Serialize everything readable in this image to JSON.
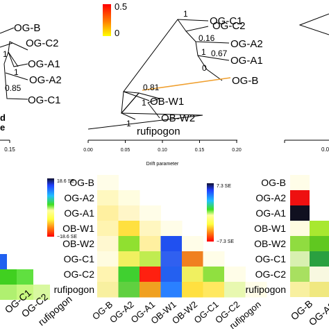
{
  "tree_left": {
    "labels": [
      "OG-B",
      "OG-C2",
      "OG-A1",
      "OG-A2",
      "OG-C1"
    ],
    "support": [
      "1",
      "1",
      "0.85"
    ],
    "tick_label": "0.15",
    "partial_glyphs": [
      "d",
      "e"
    ]
  },
  "tree_center": {
    "labels": [
      "OG-C1",
      "OG-C2",
      "OG-A2",
      "OG-A1",
      "OG-B",
      "OB-W1",
      "OB-W2",
      "rufipogon"
    ],
    "support": [
      "1",
      "0.16",
      "0.67",
      "1",
      "0",
      "0.81",
      "1",
      "1"
    ],
    "migration_edge_color": "#f0a030",
    "x_axis": {
      "label": "Drift parameter",
      "ticks": [
        "0.00",
        "0.05",
        "0.10",
        "0.15",
        "0.20"
      ]
    }
  },
  "tree_right": {
    "tick_label": "0.0"
  },
  "migration_scale": {
    "max_label": "0.5",
    "min_label": "0",
    "colors": [
      "#ff0000",
      "#ff8000",
      "#ffff00"
    ]
  },
  "heatmap_left": {
    "scale_max": "18.6 SE",
    "scale_min": "−18.6 SE",
    "x_labels": [
      "OG-C1",
      "OG-C2",
      "rufipogon"
    ]
  },
  "heatmap_center": {
    "row_labels": [
      "OG-B",
      "OG-A2",
      "OG-A1",
      "OB-W1",
      "OB-W2",
      "OG-C1",
      "OG-C2",
      "rufipogon"
    ],
    "col_labels": [
      "OG-B",
      "OG-A2",
      "OG-A1",
      "OB-W1",
      "OB-W2",
      "OG-C1",
      "OG-C2",
      "rufipogon"
    ],
    "scale_max": "7.3 SE",
    "scale_min": "−7.3 SE"
  },
  "heatmap_right": {
    "row_labels": [
      "OG-B",
      "OG-A2",
      "OG-A1",
      "OB-W1",
      "OB-W2",
      "OG-C1",
      "OG-C2",
      "rufipogon"
    ],
    "x_labels": [
      "OG-B",
      "OG-A2"
    ]
  },
  "colors": {
    "tree_line": "#000000",
    "scale_gradient": [
      "#101030",
      "#2040ff",
      "#20c0ff",
      "#40e020",
      "#c0ff40",
      "#ffffa0",
      "#ffff40",
      "#ffa020",
      "#ff4010",
      "#ff0000"
    ]
  }
}
